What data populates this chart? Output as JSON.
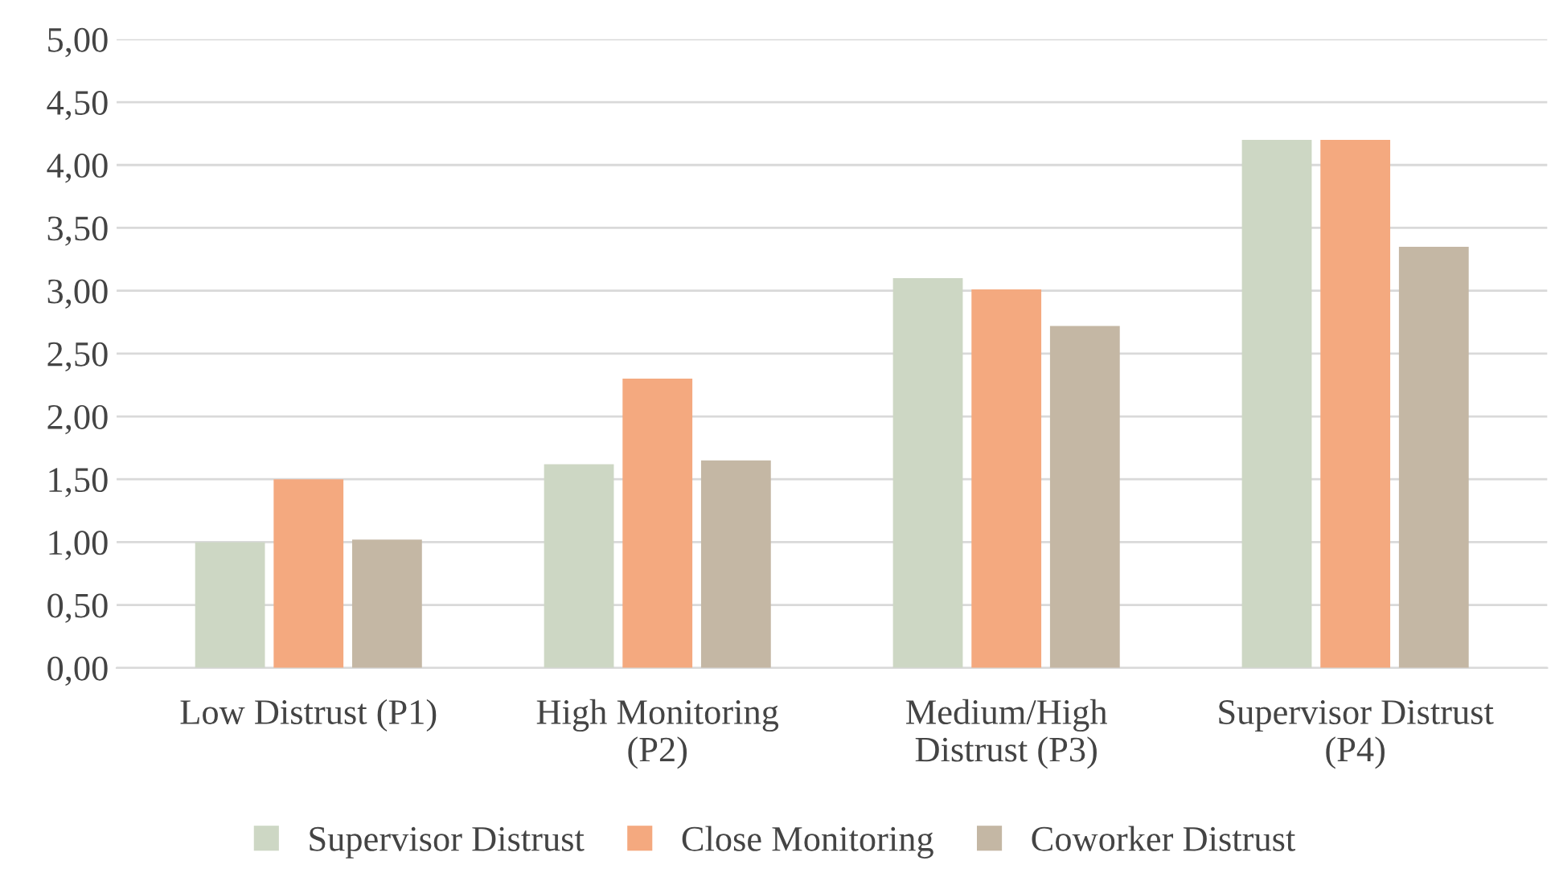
{
  "chart_data": {
    "type": "bar",
    "categories": [
      "Low Distrust (P1)",
      "High Monitoring\n(P2)",
      "Medium/High\nDistrust (P3)",
      "Supervisor Distrust\n(P4)"
    ],
    "series": [
      {
        "name": "Supervisor Distrust",
        "color": "#cdd7c4",
        "values": [
          1.0,
          1.62,
          3.1,
          4.2
        ]
      },
      {
        "name": "Close Monitoring",
        "color": "#f4a97f",
        "values": [
          1.5,
          2.3,
          3.01,
          4.2
        ]
      },
      {
        "name": "Coworker Distrust",
        "color": "#c4b7a4",
        "values": [
          1.02,
          1.65,
          2.72,
          3.35
        ]
      }
    ],
    "ylim": [
      0,
      5
    ],
    "yticks": [
      {
        "value": 0,
        "label": "0,00"
      },
      {
        "value": 0.5,
        "label": "0,50"
      },
      {
        "value": 1,
        "label": "1,00"
      },
      {
        "value": 1.5,
        "label": "1,50"
      },
      {
        "value": 2,
        "label": "2,00"
      },
      {
        "value": 2.5,
        "label": "2,50"
      },
      {
        "value": 3,
        "label": "3,00"
      },
      {
        "value": 3.5,
        "label": "3,50"
      },
      {
        "value": 4,
        "label": "4,00"
      },
      {
        "value": 4.5,
        "label": "4,50"
      },
      {
        "value": 5,
        "label": "5,00"
      }
    ],
    "grid": "y",
    "legend": "bottom"
  }
}
